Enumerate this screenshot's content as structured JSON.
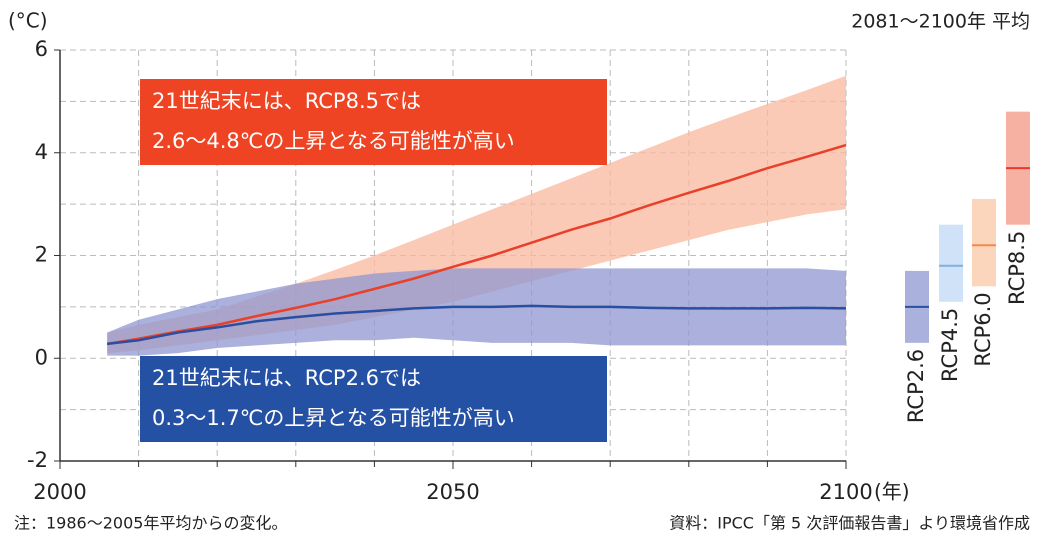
{
  "chart_data": {
    "type": "line",
    "y_unit_label": "(°C)",
    "period_label": "2081〜2100年 平均",
    "x_unit_label": "(年)",
    "xlim": [
      2000,
      2100
    ],
    "xticks": [
      2000,
      2050,
      2100
    ],
    "xgrid": [
      2010,
      2020,
      2030,
      2040,
      2060,
      2070,
      2080,
      2090
    ],
    "ylim": [
      -2,
      6
    ],
    "yticks": [
      -2,
      0,
      2,
      4,
      6
    ],
    "ygrid": [
      -1,
      1,
      3,
      5
    ],
    "grid": true,
    "x": [
      2006,
      2010,
      2015,
      2020,
      2025,
      2030,
      2035,
      2040,
      2045,
      2050,
      2055,
      2060,
      2065,
      2070,
      2075,
      2080,
      2085,
      2090,
      2095,
      2100
    ],
    "series": [
      {
        "color": "#e8402a",
        "band_color": "#f9b89e",
        "values": [
          0.28,
          0.38,
          0.52,
          0.65,
          0.82,
          0.98,
          1.15,
          1.35,
          1.55,
          1.78,
          2.0,
          2.25,
          2.5,
          2.72,
          2.98,
          3.22,
          3.45,
          3.7,
          3.92,
          4.15
        ],
        "upper": [
          0.5,
          0.65,
          0.8,
          0.95,
          1.2,
          1.45,
          1.72,
          2.0,
          2.3,
          2.6,
          2.9,
          3.2,
          3.5,
          3.8,
          4.1,
          4.4,
          4.68,
          4.95,
          5.22,
          5.5
        ],
        "lower": [
          0.1,
          0.15,
          0.25,
          0.35,
          0.45,
          0.55,
          0.65,
          0.8,
          0.95,
          1.1,
          1.3,
          1.5,
          1.7,
          1.9,
          2.1,
          2.3,
          2.5,
          2.65,
          2.8,
          2.9
        ]
      },
      {
        "color": "#2a4ea0",
        "band_color": "#8f97d0",
        "values": [
          0.28,
          0.35,
          0.5,
          0.6,
          0.72,
          0.8,
          0.87,
          0.92,
          0.97,
          1.0,
          1.0,
          1.02,
          1.0,
          1.0,
          0.98,
          0.97,
          0.97,
          0.97,
          0.98,
          0.97
        ],
        "upper": [
          0.5,
          0.75,
          0.95,
          1.15,
          1.3,
          1.45,
          1.55,
          1.65,
          1.7,
          1.75,
          1.75,
          1.75,
          1.75,
          1.75,
          1.75,
          1.75,
          1.75,
          1.75,
          1.75,
          1.7
        ],
        "lower": [
          0.05,
          0.05,
          0.1,
          0.2,
          0.25,
          0.3,
          0.35,
          0.35,
          0.4,
          0.35,
          0.3,
          0.3,
          0.3,
          0.25,
          0.25,
          0.25,
          0.25,
          0.25,
          0.25,
          0.25
        ]
      }
    ],
    "annotations": [
      {
        "color": "#ee4423",
        "lines": [
          "21世紀末には、RCP8.5では",
          "2.6〜4.8℃の上昇となる可能性が高い"
        ]
      },
      {
        "color": "#2451a4",
        "lines": [
          "21世紀末には、RCP2.6では",
          "0.3〜1.7℃の上昇となる可能性が高い"
        ]
      }
    ],
    "ranges": [
      {
        "name": "RCP2.6",
        "color": "#aab1dc",
        "line_color": "#2a4ea0",
        "low": 0.3,
        "high": 1.7,
        "mean": 1.0
      },
      {
        "name": "RCP4.5",
        "color": "#cfe2f7",
        "line_color": "#7fb0e0",
        "low": 1.1,
        "high": 2.6,
        "mean": 1.8
      },
      {
        "name": "RCP6.0",
        "color": "#fcd6bc",
        "line_color": "#f08a50",
        "low": 1.4,
        "high": 3.1,
        "mean": 2.2
      },
      {
        "name": "RCP8.5",
        "color": "#f7b1a2",
        "line_color": "#e8392a",
        "low": 2.6,
        "high": 4.8,
        "mean": 3.7
      }
    ],
    "notes": [
      "注：1986〜2005年平均からの変化。",
      "資料：IPCC「第 5 次評価報告書」より環境省作成"
    ]
  }
}
